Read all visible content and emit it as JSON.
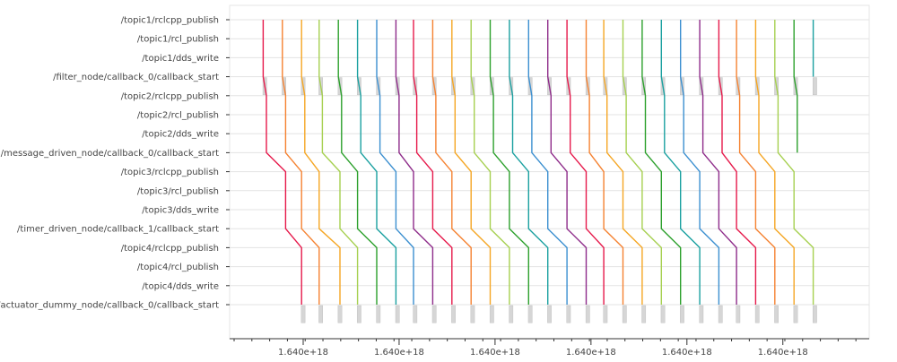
{
  "chart_data": {
    "type": "line",
    "title": "",
    "xlabel": "",
    "ylabel": "",
    "grid": true,
    "legend": "none",
    "y_categories": [
      "/topic1/rclcpp_publish",
      "/topic1/rcl_publish",
      "/topic1/dds_write",
      "/filter_node/callback_0/callback_start",
      "/topic2/rclcpp_publish",
      "/topic2/rcl_publish",
      "/topic2/dds_write",
      "/message_driven_node/callback_0/callback_start",
      "/topic3/rclcpp_publish",
      "/topic3/rcl_publish",
      "/topic3/dds_write",
      "/timer_driven_node/callback_1/callback_start",
      "/topic4/rclcpp_publish",
      "/topic4/rcl_publish",
      "/topic4/dds_write",
      "/actuator_dummy_node/callback_0/callback_start"
    ],
    "x_tick_labels": [
      "1.640e+18",
      "1.640e+18",
      "1.640e+18",
      "1.640e+18",
      "1.640e+18",
      "1.640e+18"
    ],
    "series_colors": [
      "#e6194b",
      "#f58231",
      "#f5a623",
      "#a6d050",
      "#2ca02c",
      "#1aa0a0",
      "#3b8fd0",
      "#8e2c8a"
    ],
    "series": [
      {
        "x": [
          0.0525,
          0.0525,
          0.0525,
          0.0525,
          0.0575,
          0.0575,
          0.0575,
          0.0575,
          0.0875,
          0.0875,
          0.0875,
          0.0875,
          0.1125,
          0.1125,
          0.1125,
          0.1125
        ]
      },
      {
        "x": [
          0.0825,
          0.0825,
          0.0825,
          0.0825,
          0.0875,
          0.0875,
          0.0875,
          0.0875,
          0.1125,
          0.1125,
          0.1125,
          0.1125,
          0.14,
          0.14,
          0.14,
          0.14
        ]
      },
      {
        "x": [
          0.1125,
          0.1125,
          0.1125,
          0.1125,
          0.1175,
          0.1175,
          0.1175,
          0.1175,
          0.14,
          0.14,
          0.14,
          0.14,
          0.1725,
          0.1725,
          0.1725,
          0.1725
        ]
      },
      {
        "x": [
          0.14,
          0.14,
          0.14,
          0.14,
          0.145,
          0.145,
          0.145,
          0.145,
          0.1725,
          0.1725,
          0.1725,
          0.1725,
          0.2,
          0.2,
          0.2,
          0.2
        ]
      },
      {
        "x": [
          0.17,
          0.17,
          0.17,
          0.17,
          0.175,
          0.175,
          0.175,
          0.175,
          0.2,
          0.2,
          0.2,
          0.2,
          0.23,
          0.23,
          0.23,
          0.23
        ]
      },
      {
        "x": [
          0.2,
          0.2,
          0.2,
          0.2,
          0.205,
          0.205,
          0.205,
          0.205,
          0.23,
          0.23,
          0.23,
          0.23,
          0.26,
          0.26,
          0.26,
          0.26
        ]
      },
      {
        "x": [
          0.23,
          0.23,
          0.23,
          0.23,
          0.235,
          0.235,
          0.235,
          0.235,
          0.26,
          0.26,
          0.26,
          0.26,
          0.2875,
          0.2875,
          0.2875,
          0.2875
        ]
      },
      {
        "x": [
          0.26,
          0.26,
          0.26,
          0.26,
          0.265,
          0.265,
          0.265,
          0.265,
          0.2875,
          0.2875,
          0.2875,
          0.2875,
          0.3175,
          0.3175,
          0.3175,
          0.3175
        ]
      },
      {
        "x": [
          0.2875,
          0.2875,
          0.2875,
          0.2875,
          0.2925,
          0.2925,
          0.2925,
          0.2925,
          0.3175,
          0.3175,
          0.3175,
          0.3175,
          0.3475,
          0.3475,
          0.3475,
          0.3475
        ]
      },
      {
        "x": [
          0.3175,
          0.3175,
          0.3175,
          0.3175,
          0.3225,
          0.3225,
          0.3225,
          0.3225,
          0.3475,
          0.3475,
          0.3475,
          0.3475,
          0.3775,
          0.3775,
          0.3775,
          0.3775
        ]
      },
      {
        "x": [
          0.3475,
          0.3475,
          0.3475,
          0.3475,
          0.3525,
          0.3525,
          0.3525,
          0.3525,
          0.3775,
          0.3775,
          0.3775,
          0.3775,
          0.4075,
          0.4075,
          0.4075,
          0.4075
        ]
      },
      {
        "x": [
          0.3775,
          0.3775,
          0.3775,
          0.3775,
          0.3825,
          0.3825,
          0.3825,
          0.3825,
          0.4075,
          0.4075,
          0.4075,
          0.4075,
          0.4375,
          0.4375,
          0.4375,
          0.4375
        ]
      },
      {
        "x": [
          0.4075,
          0.4075,
          0.4075,
          0.4075,
          0.4125,
          0.4125,
          0.4125,
          0.4125,
          0.4375,
          0.4375,
          0.4375,
          0.4375,
          0.4675,
          0.4675,
          0.4675,
          0.4675
        ]
      },
      {
        "x": [
          0.4375,
          0.4375,
          0.4375,
          0.4375,
          0.4425,
          0.4425,
          0.4425,
          0.4425,
          0.4675,
          0.4675,
          0.4675,
          0.4675,
          0.4975,
          0.4975,
          0.4975,
          0.4975
        ]
      },
      {
        "x": [
          0.4675,
          0.4675,
          0.4675,
          0.4675,
          0.4725,
          0.4725,
          0.4725,
          0.4725,
          0.4975,
          0.4975,
          0.4975,
          0.4975,
          0.5275,
          0.5275,
          0.5275,
          0.5275
        ]
      },
      {
        "x": [
          0.4975,
          0.4975,
          0.4975,
          0.4975,
          0.5025,
          0.5025,
          0.5025,
          0.5025,
          0.5275,
          0.5275,
          0.5275,
          0.5275,
          0.5575,
          0.5575,
          0.5575,
          0.5575
        ]
      },
      {
        "x": [
          0.5275,
          0.5275,
          0.5275,
          0.5275,
          0.5325,
          0.5325,
          0.5325,
          0.5325,
          0.5575,
          0.5575,
          0.5575,
          0.5575,
          0.585,
          0.585,
          0.585,
          0.585
        ]
      },
      {
        "x": [
          0.5575,
          0.5575,
          0.5575,
          0.5575,
          0.5625,
          0.5625,
          0.5625,
          0.5625,
          0.585,
          0.585,
          0.585,
          0.585,
          0.615,
          0.615,
          0.615,
          0.615
        ]
      },
      {
        "x": [
          0.585,
          0.585,
          0.585,
          0.585,
          0.59,
          0.59,
          0.59,
          0.59,
          0.615,
          0.615,
          0.615,
          0.615,
          0.645,
          0.645,
          0.645,
          0.645
        ]
      },
      {
        "x": [
          0.615,
          0.615,
          0.615,
          0.615,
          0.62,
          0.62,
          0.62,
          0.62,
          0.645,
          0.645,
          0.645,
          0.645,
          0.675,
          0.675,
          0.675,
          0.675
        ]
      },
      {
        "x": [
          0.645,
          0.645,
          0.645,
          0.645,
          0.65,
          0.65,
          0.65,
          0.65,
          0.675,
          0.675,
          0.675,
          0.675,
          0.705,
          0.705,
          0.705,
          0.705
        ]
      },
      {
        "x": [
          0.675,
          0.675,
          0.675,
          0.675,
          0.68,
          0.68,
          0.68,
          0.68,
          0.705,
          0.705,
          0.705,
          0.705,
          0.735,
          0.735,
          0.735,
          0.735
        ]
      },
      {
        "x": [
          0.705,
          0.705,
          0.705,
          0.705,
          0.71,
          0.71,
          0.71,
          0.71,
          0.735,
          0.735,
          0.735,
          0.735,
          0.765,
          0.765,
          0.765,
          0.765
        ]
      },
      {
        "x": [
          0.735,
          0.735,
          0.735,
          0.735,
          0.74,
          0.74,
          0.74,
          0.74,
          0.765,
          0.765,
          0.765,
          0.765,
          0.7925,
          0.7925,
          0.7925,
          0.7925
        ]
      },
      {
        "x": [
          0.765,
          0.765,
          0.765,
          0.765,
          0.77,
          0.77,
          0.77,
          0.77,
          0.7925,
          0.7925,
          0.7925,
          0.7925,
          0.8225,
          0.8225,
          0.8225,
          0.8225
        ]
      },
      {
        "x": [
          0.7925,
          0.7925,
          0.7925,
          0.7925,
          0.7975,
          0.7975,
          0.7975,
          0.7975,
          0.8225,
          0.8225,
          0.8225,
          0.8225,
          0.8525,
          0.8525,
          0.8525,
          0.8525
        ]
      },
      {
        "x": [
          0.8225,
          0.8225,
          0.8225,
          0.8225,
          0.8275,
          0.8275,
          0.8275,
          0.8275,
          0.8525,
          0.8525,
          0.8525,
          0.8525,
          0.8825,
          0.8825,
          0.8825,
          0.8825
        ]
      },
      {
        "x": [
          0.8525,
          0.8525,
          0.8525,
          0.8525,
          0.8575,
          0.8575,
          0.8575,
          0.8575,
          0.8825,
          0.8825,
          0.8825,
          0.8825,
          0.9125,
          0.9125,
          0.9125,
          0.9125
        ]
      },
      {
        "x": [
          0.8825,
          0.8825,
          0.8825,
          0.8825,
          0.8875,
          0.8875,
          0.8875,
          0.8875,
          null,
          null,
          null,
          null,
          null,
          null,
          null,
          null
        ]
      },
      {
        "x": [
          0.9125,
          0.9125,
          0.9125,
          0.9125,
          null,
          null,
          null,
          null,
          null,
          null,
          null,
          null,
          null,
          null,
          null,
          null
        ]
      }
    ],
    "spans": [
      {
        "row": 3,
        "x": 0.052,
        "w": 0.006
      },
      {
        "row": 3,
        "x": 0.082,
        "w": 0.006
      },
      {
        "row": 3,
        "x": 0.112,
        "w": 0.006
      },
      {
        "row": 3,
        "x": 0.1395,
        "w": 0.006
      },
      {
        "row": 3,
        "x": 0.1695,
        "w": 0.006
      },
      {
        "row": 3,
        "x": 0.1995,
        "w": 0.006
      },
      {
        "row": 3,
        "x": 0.2295,
        "w": 0.006
      },
      {
        "row": 3,
        "x": 0.2595,
        "w": 0.006
      },
      {
        "row": 3,
        "x": 0.287,
        "w": 0.006
      },
      {
        "row": 3,
        "x": 0.317,
        "w": 0.006
      },
      {
        "row": 3,
        "x": 0.347,
        "w": 0.006
      },
      {
        "row": 3,
        "x": 0.377,
        "w": 0.006
      },
      {
        "row": 3,
        "x": 0.407,
        "w": 0.006
      },
      {
        "row": 3,
        "x": 0.437,
        "w": 0.006
      },
      {
        "row": 3,
        "x": 0.467,
        "w": 0.006
      },
      {
        "row": 3,
        "x": 0.497,
        "w": 0.006
      },
      {
        "row": 3,
        "x": 0.527,
        "w": 0.006
      },
      {
        "row": 3,
        "x": 0.557,
        "w": 0.006
      },
      {
        "row": 3,
        "x": 0.5845,
        "w": 0.006
      },
      {
        "row": 3,
        "x": 0.6145,
        "w": 0.006
      },
      {
        "row": 3,
        "x": 0.6445,
        "w": 0.006
      },
      {
        "row": 3,
        "x": 0.6745,
        "w": 0.006
      },
      {
        "row": 3,
        "x": 0.7045,
        "w": 0.006
      },
      {
        "row": 3,
        "x": 0.7345,
        "w": 0.006
      },
      {
        "row": 3,
        "x": 0.7645,
        "w": 0.006
      },
      {
        "row": 3,
        "x": 0.792,
        "w": 0.006
      },
      {
        "row": 3,
        "x": 0.822,
        "w": 0.006
      },
      {
        "row": 3,
        "x": 0.852,
        "w": 0.006
      },
      {
        "row": 3,
        "x": 0.882,
        "w": 0.006
      },
      {
        "row": 3,
        "x": 0.912,
        "w": 0.006
      },
      {
        "row": 15,
        "x": 0.112,
        "w": 0.006
      },
      {
        "row": 15,
        "x": 0.1395,
        "w": 0.006
      },
      {
        "row": 15,
        "x": 0.1695,
        "w": 0.006
      },
      {
        "row": 15,
        "x": 0.1995,
        "w": 0.006
      },
      {
        "row": 15,
        "x": 0.2295,
        "w": 0.006
      },
      {
        "row": 15,
        "x": 0.2595,
        "w": 0.006
      },
      {
        "row": 15,
        "x": 0.287,
        "w": 0.006
      },
      {
        "row": 15,
        "x": 0.317,
        "w": 0.006
      },
      {
        "row": 15,
        "x": 0.347,
        "w": 0.006
      },
      {
        "row": 15,
        "x": 0.377,
        "w": 0.006
      },
      {
        "row": 15,
        "x": 0.407,
        "w": 0.006
      },
      {
        "row": 15,
        "x": 0.437,
        "w": 0.006
      },
      {
        "row": 15,
        "x": 0.467,
        "w": 0.006
      },
      {
        "row": 15,
        "x": 0.497,
        "w": 0.006
      },
      {
        "row": 15,
        "x": 0.527,
        "w": 0.006
      },
      {
        "row": 15,
        "x": 0.557,
        "w": 0.006
      },
      {
        "row": 15,
        "x": 0.5845,
        "w": 0.006
      },
      {
        "row": 15,
        "x": 0.6145,
        "w": 0.006
      },
      {
        "row": 15,
        "x": 0.6445,
        "w": 0.006
      },
      {
        "row": 15,
        "x": 0.6745,
        "w": 0.006
      },
      {
        "row": 15,
        "x": 0.7045,
        "w": 0.006
      },
      {
        "row": 15,
        "x": 0.7345,
        "w": 0.006
      },
      {
        "row": 15,
        "x": 0.7645,
        "w": 0.006
      },
      {
        "row": 15,
        "x": 0.792,
        "w": 0.006
      },
      {
        "row": 15,
        "x": 0.822,
        "w": 0.006
      },
      {
        "row": 15,
        "x": 0.852,
        "w": 0.006
      },
      {
        "row": 15,
        "x": 0.882,
        "w": 0.006
      },
      {
        "row": 15,
        "x": 0.912,
        "w": 0.006
      }
    ]
  }
}
